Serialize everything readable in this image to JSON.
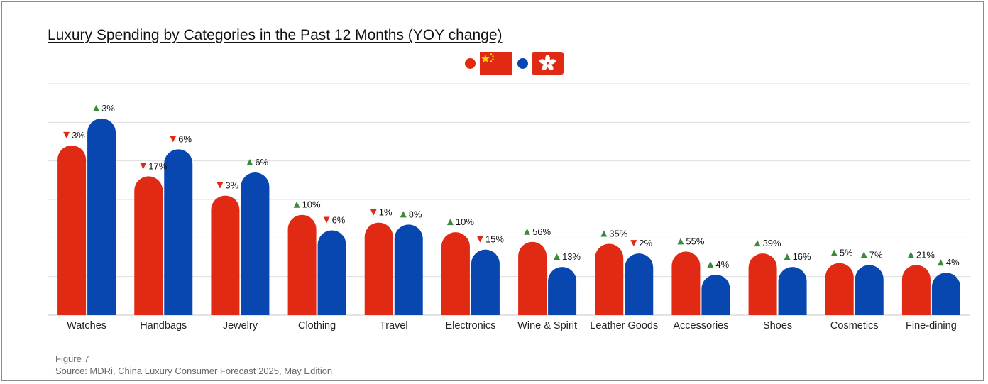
{
  "figure": {
    "label": "Figure 7",
    "source": "Source: MDRi, China Luxury Consumer Forecast 2025, May Edition"
  },
  "legend": [
    {
      "name": "mainland-china",
      "icon": "china-flag-icon",
      "color": "#e12a13"
    },
    {
      "name": "hong-kong",
      "icon": "hong-kong-flag-icon",
      "color": "#0847b0"
    }
  ],
  "colors": {
    "mainland": "#e12a13",
    "hongkong": "#0847b0",
    "up_arrow": "#3a8a3a",
    "down_arrow": "#e12a13",
    "grid": "#dedede"
  },
  "chart_data": {
    "type": "bar",
    "title": "Luxury Spending by Categories in the Past 12 Months (YOY change)",
    "xlabel": "",
    "ylabel": "",
    "ylim": [
      0,
      60
    ],
    "y_ticks_shown": false,
    "grid": true,
    "categories": [
      "Watches",
      "Handbags",
      "Jewelry",
      "Clothing",
      "Travel",
      "Electronics",
      "Wine & Spirit",
      "Leather Goods",
      "Accessories",
      "Shoes",
      "Cosmetics",
      "Fine-dining"
    ],
    "series": [
      {
        "key": "mainland",
        "values": [
          44,
          36,
          31,
          26,
          24,
          21.5,
          19,
          18.5,
          16.5,
          16,
          13.5,
          13
        ],
        "changes": [
          {
            "dir": "down",
            "label": "3%"
          },
          {
            "dir": "down",
            "label": "17%"
          },
          {
            "dir": "down",
            "label": "3%"
          },
          {
            "dir": "up",
            "label": "10%"
          },
          {
            "dir": "down",
            "label": "1%"
          },
          {
            "dir": "up",
            "label": "10%"
          },
          {
            "dir": "up",
            "label": "56%"
          },
          {
            "dir": "up",
            "label": "35%"
          },
          {
            "dir": "up",
            "label": "55%"
          },
          {
            "dir": "up",
            "label": "39%"
          },
          {
            "dir": "up",
            "label": "5%"
          },
          {
            "dir": "up",
            "label": "21%"
          }
        ]
      },
      {
        "key": "hongkong",
        "values": [
          51,
          43,
          37,
          22,
          23.5,
          17,
          12.5,
          16,
          10.5,
          12.5,
          13,
          11
        ],
        "changes": [
          {
            "dir": "up",
            "label": "3%"
          },
          {
            "dir": "down",
            "label": "6%"
          },
          {
            "dir": "up",
            "label": "6%"
          },
          {
            "dir": "down",
            "label": "6%"
          },
          {
            "dir": "up",
            "label": "8%"
          },
          {
            "dir": "down",
            "label": "15%"
          },
          {
            "dir": "up",
            "label": "13%"
          },
          {
            "dir": "down",
            "label": "2%"
          },
          {
            "dir": "up",
            "label": "4%"
          },
          {
            "dir": "up",
            "label": "16%"
          },
          {
            "dir": "up",
            "label": "7%"
          },
          {
            "dir": "up",
            "label": "4%"
          }
        ]
      }
    ]
  }
}
